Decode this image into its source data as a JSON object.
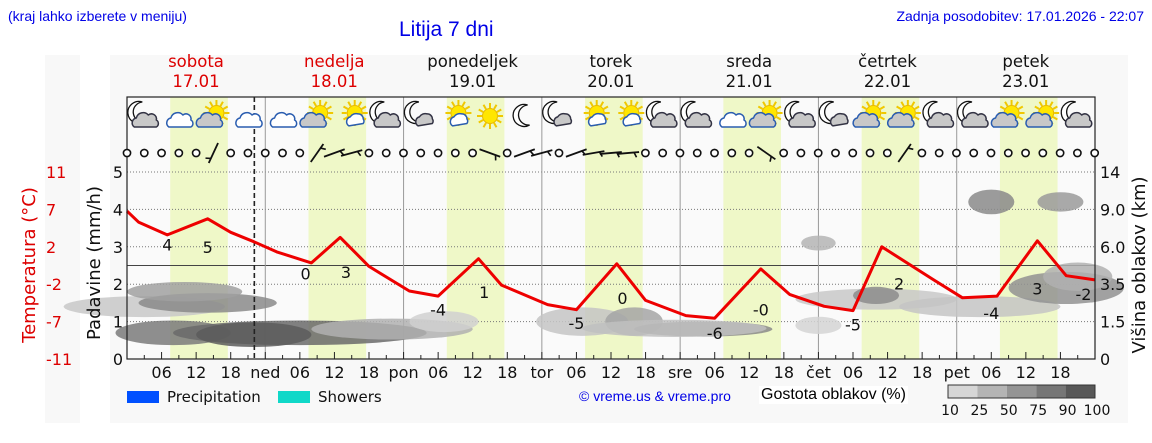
{
  "header": {
    "note": "(kraj lahko izberete v meniju)",
    "title": "Litija 7 dni",
    "updated": "Zadnja posodobitev: 17.01.2026 - 22:07"
  },
  "days": [
    {
      "name": "sobota",
      "date": "17.01",
      "weekend": true,
      "short": ""
    },
    {
      "name": "nedelja",
      "date": "18.01",
      "weekend": true,
      "short": "ned"
    },
    {
      "name": "ponedeljek",
      "date": "19.01",
      "weekend": false,
      "short": "pon"
    },
    {
      "name": "torek",
      "date": "20.01",
      "weekend": false,
      "short": "tor"
    },
    {
      "name": "sreda",
      "date": "21.01",
      "weekend": false,
      "short": "sre"
    },
    {
      "name": "četrtek",
      "date": "22.01",
      "weekend": false,
      "short": "čet"
    },
    {
      "name": "petek",
      "date": "23.01",
      "weekend": false,
      "short": "pet"
    }
  ],
  "colors": {
    "weekend_day": "#dd0000",
    "weekday": "#111111",
    "temperature_line": "#ee0000",
    "daylight_band": "#eff8c8",
    "precipitation": "#0050ff",
    "showers": "#10d8c8",
    "link": "#0000e6"
  },
  "axes": {
    "temperature_label": "Temperatura (°C)",
    "temperature_ticks": [
      "11",
      "7",
      "2",
      "-2",
      "-7",
      "-11"
    ],
    "precip_label": "Padavine (mm/h)",
    "precip_ticks": [
      "5",
      "4",
      "3",
      "2",
      "1",
      "0"
    ],
    "cloud_height_label": "Višina oblakov (km)",
    "cloud_height_ticks": [
      "14",
      "9.0",
      "6.0",
      "3.5",
      "1.5",
      "0"
    ],
    "hour_ticks": [
      "06",
      "12",
      "18"
    ]
  },
  "icons": [
    "moon-cloud-icon",
    "cloud-icon",
    "sun-cloud-icon",
    "cloud-icon",
    "cloud-icon",
    "sun-cloud-icon",
    "sun-small-cloud-icon",
    "moon-cloud-icon",
    "moon-small-cloud-icon",
    "sun-small-cloud-icon",
    "sun-icon",
    "moon-icon",
    "moon-small-cloud-icon",
    "sun-small-cloud-icon",
    "sun-small-cloud-icon",
    "moon-cloud-icon",
    "moon-cloud-icon",
    "cloud-icon",
    "sun-cloud-icon",
    "moon-cloud-icon",
    "moon-small-cloud-icon",
    "sun-cloud-icon",
    "sun-cloud-icon",
    "moon-cloud-icon",
    "moon-cloud-icon",
    "sun-cloud-icon",
    "sun-cloud-icon",
    "moon-cloud-icon"
  ],
  "wind": {
    "note": "one entry per 3h, 0=calm circle, otherwise barb angle in degrees",
    "values": [
      0,
      0,
      0,
      0,
      0,
      115,
      0,
      0,
      0,
      0,
      0,
      -55,
      -20,
      -15,
      0,
      0,
      0,
      0,
      0,
      0,
      0,
      20,
      0,
      -20,
      -15,
      0,
      -20,
      -10,
      -5,
      -5,
      0,
      0,
      0,
      0,
      0,
      0,
      0,
      35,
      0,
      0,
      0,
      0,
      0,
      0,
      0,
      -55,
      0,
      0,
      0,
      0,
      0,
      0,
      0,
      0,
      0,
      0,
      0
    ]
  },
  "legend": {
    "precipitation": "Precipitation",
    "showers": "Showers",
    "copyright": "© vreme.us & vreme.pro",
    "cloud_density_title": "Gostota oblakov (%)",
    "cloud_density_scale": [
      "10",
      "25",
      "50",
      "75",
      "90",
      "100"
    ],
    "cloud_density_colors": [
      "#d6d6d6",
      "#b4b4b4",
      "#949494",
      "#767676",
      "#585858"
    ]
  },
  "chart_data": {
    "type": "line",
    "title": "Litija 7 dni",
    "xlabel": "",
    "ylabel": "Temperatura (°C)",
    "ylabel_right": "Višina oblakov (km)",
    "ylabel_precip": "Padavine (mm/h)",
    "ylim": [
      -11,
      11
    ],
    "precip_ylim": [
      0,
      5
    ],
    "x_unit": "hours since 17.01 00:00",
    "now_marker_hour": 22.1,
    "daylight_hours": [
      7.5,
      17.5
    ],
    "series": [
      {
        "name": "Temperatura",
        "x": [
          0,
          2,
          7,
          14,
          18,
          22,
          26,
          32,
          37,
          42,
          49,
          54,
          61,
          65,
          73,
          78,
          85,
          90,
          97,
          102,
          110,
          115,
          121,
          126,
          131,
          140,
          145,
          151,
          158,
          163,
          168
        ],
        "values": [
          6.4,
          5.1,
          3.6,
          5.5,
          3.9,
          2.8,
          1.6,
          0.3,
          3.3,
          -0.1,
          -3.0,
          -3.6,
          0.8,
          -2.3,
          -4.6,
          -5.2,
          0.2,
          -4.1,
          -5.9,
          -6.2,
          -0.4,
          -3.4,
          -4.8,
          -5.3,
          2.2,
          -1.7,
          -3.8,
          -3.6,
          2.9,
          -1.2,
          -1.7
        ]
      },
      {
        "name": "Precipitation",
        "values": []
      },
      {
        "name": "Showers",
        "values": []
      }
    ],
    "annotations": [
      {
        "x": 7,
        "label": "4"
      },
      {
        "x": 14,
        "label": "5"
      },
      {
        "x": 31,
        "label": "0"
      },
      {
        "x": 38,
        "label": "3"
      },
      {
        "x": 54,
        "label": "-4"
      },
      {
        "x": 62,
        "label": "1"
      },
      {
        "x": 78,
        "label": "-5"
      },
      {
        "x": 86,
        "label": "0"
      },
      {
        "x": 102,
        "label": "-6"
      },
      {
        "x": 110,
        "label": "-0"
      },
      {
        "x": 126,
        "label": "-5"
      },
      {
        "x": 134,
        "label": "2"
      },
      {
        "x": 150,
        "label": "-4"
      },
      {
        "x": 158,
        "label": "3"
      },
      {
        "x": 166,
        "label": "-2"
      }
    ],
    "legend": [
      "Precipitation",
      "Showers"
    ],
    "grid": true
  }
}
